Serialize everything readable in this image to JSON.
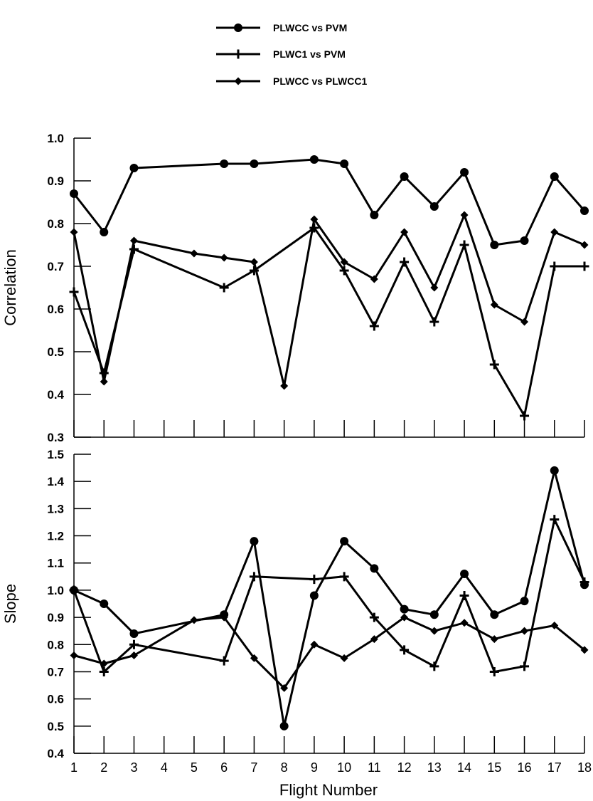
{
  "legend": {
    "items": [
      {
        "label": "PLWCC vs PVM",
        "marker": "circle"
      },
      {
        "label": "PLWC1 vs PVM",
        "marker": "plus"
      },
      {
        "label": "PLWCC vs PLWCC1",
        "marker": "diamond"
      }
    ]
  },
  "chart_data": [
    {
      "type": "line",
      "title": "",
      "xlabel": "Flight Number",
      "ylabel": "Correlation",
      "x": [
        1,
        2,
        3,
        4,
        5,
        6,
        7,
        8,
        9,
        10,
        11,
        12,
        13,
        14,
        15,
        16,
        17,
        18
      ],
      "xlim": [
        1,
        18
      ],
      "ylim": [
        0.3,
        1.0
      ],
      "yticks": [
        "0.3",
        "0.4",
        "0.5",
        "0.6",
        "0.7",
        "0.8",
        "0.9",
        "1.0"
      ],
      "grid": false,
      "series": [
        {
          "name": "PLWCC vs PVM",
          "marker": "circle",
          "x": [
            1,
            2,
            3,
            6,
            7,
            9,
            10,
            11,
            12,
            13,
            14,
            15,
            16,
            17,
            18
          ],
          "values": [
            0.87,
            0.78,
            0.93,
            0.94,
            0.94,
            0.95,
            0.94,
            0.82,
            0.91,
            0.84,
            0.92,
            0.75,
            0.76,
            0.91,
            0.83
          ]
        },
        {
          "name": "PLWC1 vs PVM",
          "marker": "plus",
          "x": [
            1,
            2,
            3,
            6,
            7,
            9,
            10,
            11,
            12,
            13,
            14,
            15,
            16,
            17,
            18
          ],
          "values": [
            0.64,
            0.45,
            0.74,
            0.65,
            0.69,
            0.79,
            0.69,
            0.56,
            0.71,
            0.57,
            0.75,
            0.47,
            0.35,
            0.7,
            0.7
          ]
        },
        {
          "name": "PLWCC vs PLWCC1",
          "marker": "diamond",
          "x": [
            1,
            2,
            3,
            5,
            6,
            7,
            8,
            9,
            10,
            11,
            12,
            13,
            14,
            15,
            16,
            17,
            18
          ],
          "values": [
            0.78,
            0.43,
            0.76,
            0.73,
            0.72,
            0.71,
            0.42,
            0.81,
            0.71,
            0.67,
            0.78,
            0.65,
            0.82,
            0.61,
            0.57,
            0.78,
            0.75
          ]
        }
      ]
    },
    {
      "type": "line",
      "title": "",
      "xlabel": "Flight Number",
      "ylabel": "Slope",
      "x": [
        1,
        2,
        3,
        4,
        5,
        6,
        7,
        8,
        9,
        10,
        11,
        12,
        13,
        14,
        15,
        16,
        17,
        18
      ],
      "xticks": [
        "1",
        "2",
        "3",
        "4",
        "5",
        "6",
        "7",
        "8",
        "9",
        "10",
        "11",
        "12",
        "13",
        "14",
        "15",
        "16",
        "17",
        "18"
      ],
      "xlim": [
        1,
        18
      ],
      "ylim": [
        0.4,
        1.5
      ],
      "yticks": [
        "0.4",
        "0.5",
        "0.6",
        "0.7",
        "0.8",
        "0.9",
        "1.0",
        "1.1",
        "1.2",
        "1.3",
        "1.4",
        "1.5"
      ],
      "grid": false,
      "series": [
        {
          "name": "PLWCC vs PVM",
          "marker": "circle",
          "x": [
            1,
            2,
            3,
            6,
            7,
            8,
            9,
            10,
            11,
            12,
            13,
            14,
            15,
            16,
            17,
            18
          ],
          "values": [
            1.0,
            0.95,
            0.84,
            0.91,
            1.18,
            0.5,
            0.98,
            1.18,
            1.08,
            0.93,
            0.91,
            1.06,
            0.91,
            0.96,
            1.44,
            1.02
          ]
        },
        {
          "name": "PLWC1 vs PVM",
          "marker": "plus",
          "x": [
            1,
            2,
            3,
            6,
            7,
            9,
            10,
            11,
            12,
            13,
            14,
            15,
            16,
            17,
            18
          ],
          "values": [
            1.0,
            0.7,
            0.8,
            0.74,
            1.05,
            1.04,
            1.05,
            0.9,
            0.78,
            0.72,
            0.98,
            0.7,
            0.72,
            1.26,
            1.03
          ]
        },
        {
          "name": "PLWCC vs PLWCC1",
          "marker": "diamond",
          "x": [
            1,
            2,
            3,
            5,
            6,
            7,
            8,
            9,
            10,
            11,
            12,
            13,
            14,
            15,
            16,
            17,
            18
          ],
          "values": [
            0.76,
            0.73,
            0.76,
            0.89,
            0.9,
            0.75,
            0.64,
            0.8,
            0.75,
            0.82,
            0.9,
            0.85,
            0.88,
            0.82,
            0.85,
            0.87,
            0.78
          ]
        }
      ]
    }
  ]
}
